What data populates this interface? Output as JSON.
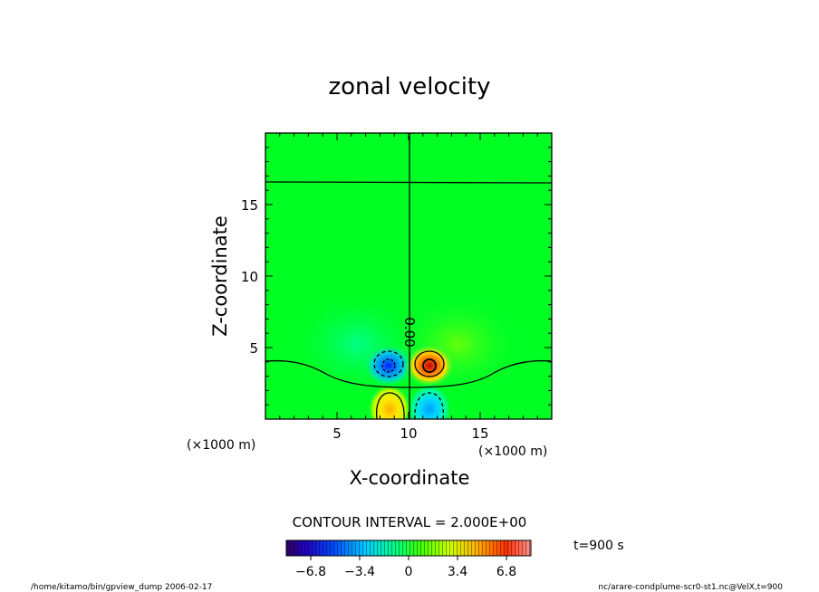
{
  "chart_data": {
    "type": "heatmap",
    "title": "zonal velocity",
    "xlabel": "X-coordinate",
    "ylabel": "Z-coordinate",
    "x_unit": "(×1000 m)",
    "y_unit": "(×1000 m)",
    "xlim": [
      0,
      20
    ],
    "ylim": [
      0,
      20
    ],
    "x_ticks": [
      "5",
      "10",
      "15"
    ],
    "y_ticks": [
      "5",
      "10",
      "15"
    ],
    "x_tick_values": [
      5,
      10,
      15
    ],
    "y_tick_values": [
      5,
      10,
      15
    ],
    "contour_label": "0.00",
    "contour_interval": "CONTOUR INTERVAL = 2.000E+00",
    "time_label": "t=900 s",
    "colorbar": {
      "min": -8.5,
      "max": 8.5,
      "tick_labels": [
        "−6.8",
        "−3.4",
        "0",
        "3.4",
        "6.8"
      ],
      "tick_values": [
        -6.8,
        -3.4,
        0,
        3.4,
        6.8
      ]
    },
    "features": [
      {
        "kind": "negative-core",
        "x": 8.6,
        "z": 3.6,
        "value": -5.0
      },
      {
        "kind": "positive-core",
        "x": 11.4,
        "z": 3.6,
        "value": 5.0
      },
      {
        "kind": "positive-core",
        "x": 8.6,
        "z": 1.0,
        "value": 3.0
      },
      {
        "kind": "negative-core",
        "x": 11.4,
        "z": 1.0,
        "value": -3.0
      }
    ]
  },
  "footer": {
    "left": "/home/kitamo/bin/gpview_dump  2006-02-17",
    "right": "nc/arare-condplume-scr0-st1.nc@VelX,t=900"
  }
}
